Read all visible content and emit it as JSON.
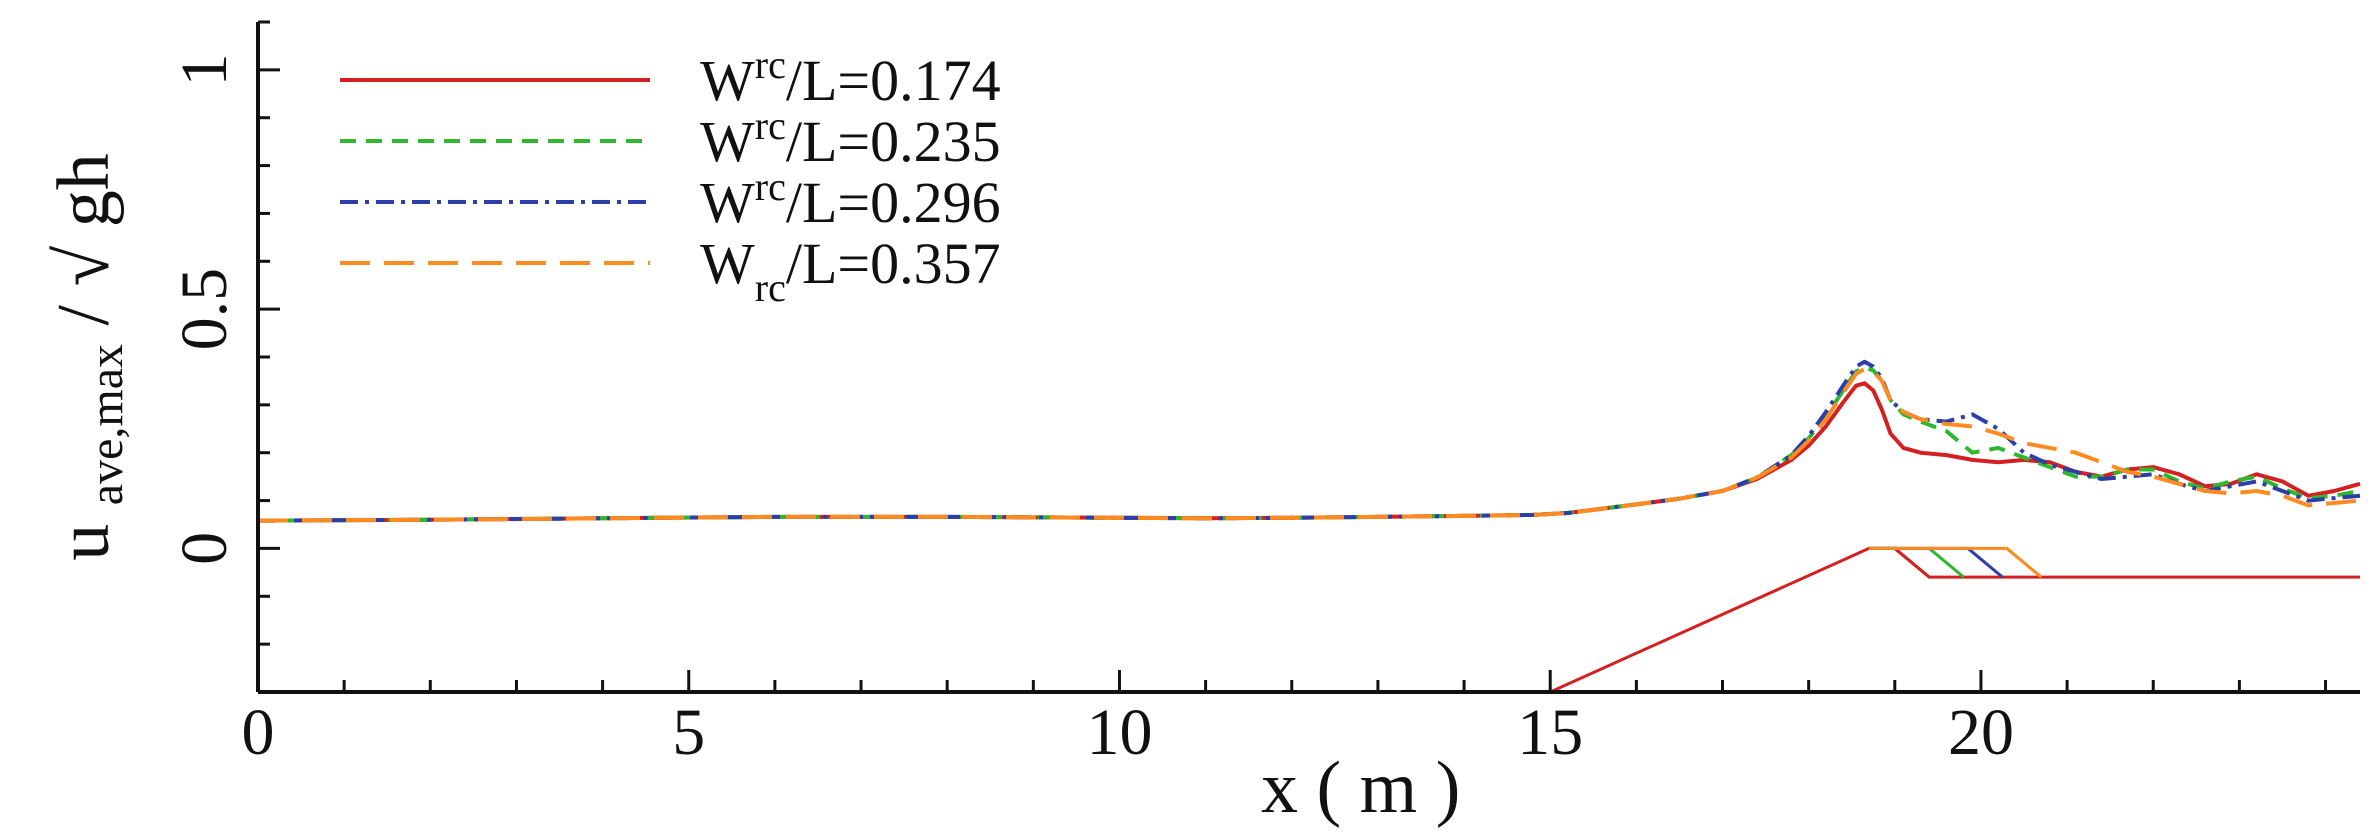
{
  "chart_data": {
    "type": "line",
    "xlabel": "x ( m )",
    "ylabel": {
      "main": "u",
      "subscript": "ave,max",
      "divider": " / ",
      "root": "√",
      "denominator": "gh"
    },
    "xlim": [
      0,
      24.4
    ],
    "ylim": [
      -0.3,
      1.1
    ],
    "x_ticks": [
      0,
      5,
      10,
      15,
      20
    ],
    "y_ticks": [
      0,
      0.5,
      1
    ],
    "x_tick_labels": [
      "0",
      "5",
      "10",
      "15",
      "20"
    ],
    "y_tick_labels": [
      "0",
      "0.5",
      "1"
    ],
    "legend_position": "top-left",
    "grid": false,
    "series": [
      {
        "name": "Wrc/L=0.174",
        "label": {
          "base": "W",
          "sup": "rc",
          "rest": "/L=0.174"
        },
        "color": "#d42020",
        "style": "solid",
        "x": [
          0,
          2,
          4,
          6,
          8,
          10,
          11,
          12,
          13,
          14,
          14.8,
          15.2,
          15.6,
          16,
          16.5,
          17,
          17.4,
          17.8,
          18.0,
          18.2,
          18.4,
          18.55,
          18.65,
          18.75,
          18.85,
          18.95,
          19.1,
          19.3,
          19.6,
          19.9,
          20.2,
          20.5,
          20.8,
          21.1,
          21.4,
          21.7,
          22.0,
          22.3,
          22.6,
          22.9,
          23.2,
          23.5,
          23.8,
          24.1,
          24.4
        ],
        "y": [
          0.058,
          0.06,
          0.063,
          0.066,
          0.066,
          0.064,
          0.063,
          0.064,
          0.066,
          0.068,
          0.07,
          0.074,
          0.083,
          0.092,
          0.104,
          0.12,
          0.145,
          0.185,
          0.215,
          0.255,
          0.305,
          0.34,
          0.345,
          0.33,
          0.29,
          0.24,
          0.21,
          0.2,
          0.195,
          0.185,
          0.18,
          0.185,
          0.18,
          0.16,
          0.15,
          0.165,
          0.17,
          0.155,
          0.13,
          0.135,
          0.155,
          0.14,
          0.11,
          0.12,
          0.135
        ]
      },
      {
        "name": "Wrc/L=0.235",
        "label": {
          "base": "W",
          "sup": "rc",
          "rest": "/L=0.235"
        },
        "color": "#2eb82e",
        "style": "dashed",
        "x": [
          0,
          2,
          4,
          6,
          8,
          10,
          11,
          12,
          13,
          14,
          14.8,
          15.2,
          15.6,
          16,
          16.5,
          17,
          17.4,
          17.8,
          18.0,
          18.2,
          18.4,
          18.55,
          18.65,
          18.75,
          18.85,
          18.95,
          19.1,
          19.3,
          19.6,
          19.9,
          20.2,
          20.5,
          20.8,
          21.1,
          21.4,
          21.7,
          22.0,
          22.3,
          22.6,
          22.9,
          23.2,
          23.5,
          23.8,
          24.1,
          24.4
        ],
        "y": [
          0.058,
          0.06,
          0.063,
          0.066,
          0.066,
          0.064,
          0.063,
          0.064,
          0.066,
          0.068,
          0.07,
          0.074,
          0.083,
          0.092,
          0.104,
          0.12,
          0.148,
          0.195,
          0.23,
          0.275,
          0.33,
          0.37,
          0.378,
          0.372,
          0.35,
          0.31,
          0.28,
          0.265,
          0.245,
          0.2,
          0.21,
          0.19,
          0.17,
          0.15,
          0.15,
          0.165,
          0.165,
          0.14,
          0.125,
          0.14,
          0.15,
          0.125,
          0.105,
          0.11,
          0.12
        ]
      },
      {
        "name": "Wrc/L=0.296",
        "label": {
          "base": "W",
          "sup": "rc",
          "rest": "/L=0.296"
        },
        "color": "#2b3fa8",
        "style": "dashdot",
        "x": [
          0,
          2,
          4,
          6,
          8,
          10,
          11,
          12,
          13,
          14,
          14.8,
          15.2,
          15.6,
          16,
          16.5,
          17,
          17.4,
          17.8,
          18.0,
          18.2,
          18.4,
          18.55,
          18.65,
          18.75,
          18.85,
          18.95,
          19.1,
          19.3,
          19.6,
          19.9,
          20.2,
          20.5,
          20.8,
          21.1,
          21.4,
          21.7,
          22.0,
          22.3,
          22.6,
          22.9,
          23.2,
          23.5,
          23.8,
          24.1,
          24.4
        ],
        "y": [
          0.058,
          0.06,
          0.063,
          0.066,
          0.066,
          0.064,
          0.063,
          0.064,
          0.066,
          0.068,
          0.07,
          0.074,
          0.083,
          0.092,
          0.104,
          0.12,
          0.148,
          0.195,
          0.235,
          0.285,
          0.34,
          0.38,
          0.39,
          0.38,
          0.355,
          0.31,
          0.285,
          0.27,
          0.265,
          0.28,
          0.25,
          0.2,
          0.175,
          0.16,
          0.145,
          0.15,
          0.155,
          0.135,
          0.12,
          0.13,
          0.14,
          0.12,
          0.1,
          0.105,
          0.11
        ]
      },
      {
        "name": "Wrc/L=0.357",
        "label": {
          "base": "W",
          "sup": "rc",
          "rest": "/L=0.357"
        },
        "color": "#ff8a1f",
        "style": "longdash",
        "x": [
          0,
          2,
          4,
          6,
          8,
          10,
          11,
          12,
          13,
          14,
          14.8,
          15.2,
          15.6,
          16,
          16.5,
          17,
          17.4,
          17.8,
          18.0,
          18.2,
          18.4,
          18.55,
          18.65,
          18.75,
          18.85,
          18.95,
          19.1,
          19.3,
          19.6,
          19.9,
          20.2,
          20.5,
          20.8,
          21.1,
          21.4,
          21.7,
          22.0,
          22.3,
          22.6,
          22.9,
          23.2,
          23.5,
          23.8,
          24.1,
          24.4
        ],
        "y": [
          0.058,
          0.06,
          0.063,
          0.066,
          0.066,
          0.064,
          0.063,
          0.064,
          0.066,
          0.068,
          0.07,
          0.074,
          0.083,
          0.092,
          0.104,
          0.12,
          0.148,
          0.19,
          0.225,
          0.27,
          0.325,
          0.365,
          0.375,
          0.37,
          0.35,
          0.31,
          0.285,
          0.27,
          0.26,
          0.255,
          0.24,
          0.22,
          0.21,
          0.2,
          0.18,
          0.16,
          0.15,
          0.135,
          0.12,
          0.115,
          0.12,
          0.11,
          0.09,
          0.095,
          0.1
        ]
      }
    ],
    "profile": {
      "color": "#d42020",
      "slope": [
        [
          15.0,
          -0.3
        ],
        [
          18.7,
          0.0
        ],
        [
          19.0,
          0.0
        ],
        [
          19.4,
          -0.06
        ],
        [
          24.4,
          -0.06
        ]
      ],
      "widths": [
        {
          "color": "#d42020",
          "top_end": 19.0
        },
        {
          "color": "#2eb82e",
          "top_end": 19.4
        },
        {
          "color": "#2b3fa8",
          "top_end": 19.85
        },
        {
          "color": "#ff8a1f",
          "top_end": 20.3
        }
      ]
    }
  }
}
